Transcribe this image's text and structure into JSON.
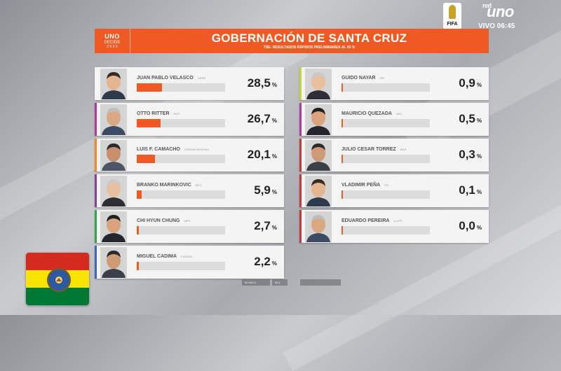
{
  "header": {
    "logo": {
      "line1": "UNO",
      "line2": "DECIDE",
      "line3": "2 0 2 5"
    },
    "title": "GOBERNACIÓN DE SANTA CRUZ",
    "subtitle": "TSE- RESULTADOS RÁPIDOS PRELIMINARES AL 93 %"
  },
  "broadcast": {
    "fifa_label": "FIFA",
    "network_prefix": "red",
    "network": "uno",
    "live_label": "VIVO 06:45"
  },
  "colors": {
    "accent": "#ef5a24"
  },
  "candidates_left": [
    {
      "name": "JUAN PABLO VELASCO",
      "party": "LIBRE",
      "percent": "28,5",
      "percent_symbol": "%",
      "value": 28.5,
      "accent_color": "#f4f4f4"
    },
    {
      "name": "OTTO RITTER",
      "party": "NGP",
      "percent": "26,7",
      "percent_symbol": "%",
      "value": 26.7,
      "accent_color": "#b03a9a"
    },
    {
      "name": "LUIS F. CAMACHO",
      "party": "CREEMOS/PATRIA",
      "percent": "20,1",
      "percent_symbol": "%",
      "value": 20.1,
      "accent_color": "#f08a24"
    },
    {
      "name": "BRANKO MARINKOVIC",
      "party": "MCC",
      "percent": "5,9",
      "percent_symbol": "%",
      "value": 5.9,
      "accent_color": "#8a3fa0"
    },
    {
      "name": "CHI HYUN CHUNG",
      "party": "MPS",
      "percent": "2,7",
      "percent_symbol": "%",
      "value": 2.7,
      "accent_color": "#2ea84c"
    },
    {
      "name": "MIGUEL CADIMA",
      "party": "FUERZA",
      "percent": "2,2",
      "percent_symbol": "%",
      "value": 2.2,
      "accent_color": "#3a66c4"
    }
  ],
  "candidates_right": [
    {
      "name": "GUIDO NAYAR",
      "party": "FRI",
      "percent": "0,9",
      "percent_symbol": "%",
      "value": 0.9,
      "accent_color": "#c8d43a"
    },
    {
      "name": "MAURICIO QUEZADA",
      "party": "ADC",
      "percent": "0,5",
      "percent_symbol": "%",
      "value": 0.5,
      "accent_color": "#b03a9a"
    },
    {
      "name": "JULIO CESAR TORREZ",
      "party": "MAP",
      "percent": "0,3",
      "percent_symbol": "%",
      "value": 0.3,
      "accent_color": "#c43a3a"
    },
    {
      "name": "VLADIMIR PEÑA",
      "party": "PS",
      "percent": "0,1",
      "percent_symbol": "%",
      "value": 0.1,
      "accent_color": "#c43a3a"
    },
    {
      "name": "EDUARDO PEREIRA",
      "party": "A-UPP",
      "percent": "0,0",
      "percent_symbol": "%",
      "value": 0.0,
      "accent_color": "#c43a3a"
    }
  ],
  "ticker": {
    "left": "BLANCO",
    "mid": "NUL",
    "right": ""
  }
}
